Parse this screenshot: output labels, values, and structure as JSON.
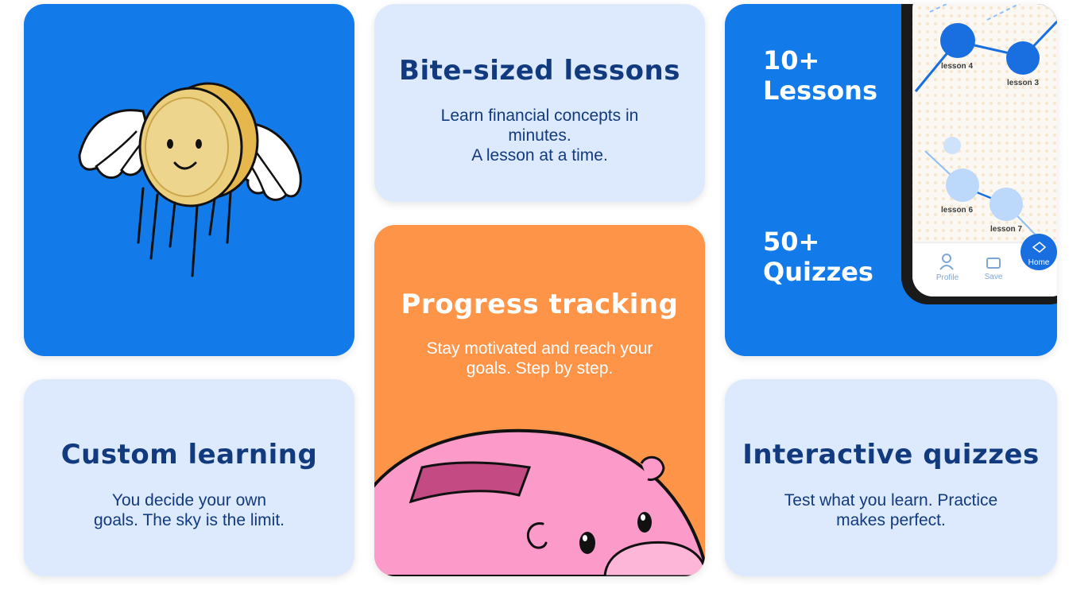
{
  "cards": {
    "bite": {
      "title": "Bite-sized lessons",
      "desc_line1": "Learn financial concepts in",
      "desc_line2": "minutes.",
      "desc_line3": "A lesson at a time."
    },
    "progress": {
      "title": "Progress tracking",
      "desc_line1": "Stay motivated and reach your",
      "desc_line2": "goals. Step by step."
    },
    "custom": {
      "title": "Custom learning",
      "desc_line1": "You decide your own",
      "desc_line2": "goals. The sky is the limit."
    },
    "quiz": {
      "title": "Interactive quizzes",
      "desc_line1": "Test what you learn. Practice",
      "desc_line2": "makes perfect."
    },
    "stats": {
      "lessons_count": "10+",
      "lessons_label": "Lessons",
      "quizzes_count": "50+",
      "quizzes_label": "Quizzes"
    }
  },
  "phone": {
    "nodes": [
      "lesson 4",
      "lesson 3",
      "lesson 6",
      "lesson 7"
    ],
    "nav": {
      "profile": "Profile",
      "save": "Save",
      "home": "Home"
    }
  },
  "colors": {
    "blue": "#137aea",
    "light": "#ddeafd",
    "orange": "#fd9447",
    "navy": "#123a7e",
    "pink": "#fc9bc9"
  }
}
